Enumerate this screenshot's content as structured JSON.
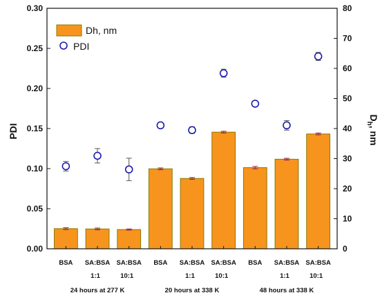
{
  "chart_data": {
    "type": "bar",
    "categories": [
      "BSA",
      "SA:BSA 1:1",
      "SA:BSA 10:1",
      "BSA",
      "SA:BSA 1:1",
      "SA:BSA 10:1",
      "BSA",
      "SA:BSA 1:1",
      "SA:BSA 10:1"
    ],
    "category_labels": [
      {
        "line1": "BSA",
        "line2": ""
      },
      {
        "line1": "SA:BSA",
        "line2": "1:1"
      },
      {
        "line1": "SA:BSA",
        "line2": "10:1"
      },
      {
        "line1": "BSA",
        "line2": ""
      },
      {
        "line1": "SA:BSA",
        "line2": "1:1"
      },
      {
        "line1": "SA:BSA",
        "line2": "10:1"
      },
      {
        "line1": "BSA",
        "line2": ""
      },
      {
        "line1": "SA:BSA",
        "line2": "1:1"
      },
      {
        "line1": "SA:BSA",
        "line2": "10:1"
      }
    ],
    "groups": [
      {
        "label": "24 hours at 277 K",
        "categories": [
          0,
          1,
          2
        ]
      },
      {
        "label": "20 hours at 338 K",
        "categories": [
          3,
          4,
          5
        ]
      },
      {
        "label": "48 hours at 338 K",
        "categories": [
          6,
          7,
          8
        ]
      }
    ],
    "series": [
      {
        "name": "Dh, nm",
        "kind": "bar",
        "axis": "right",
        "color": "#F7941D",
        "edge_color": "#8B7A00",
        "values": [
          6.7,
          6.6,
          6.4,
          26.6,
          23.4,
          38.8,
          27.0,
          29.8,
          38.2
        ],
        "errors": [
          0.3,
          0.3,
          0.2,
          0.3,
          0.3,
          0.3,
          0.4,
          0.3,
          0.3
        ]
      },
      {
        "name": "PDI",
        "kind": "scatter",
        "axis": "left",
        "color": "#1C1CB0",
        "values": [
          0.103,
          0.116,
          0.099,
          0.154,
          0.148,
          0.219,
          0.181,
          0.154,
          0.24
        ],
        "errors": [
          0.006,
          0.009,
          0.014,
          0.003,
          0.004,
          0.005,
          0.003,
          0.006,
          0.005
        ]
      }
    ],
    "ylabel": "PDI",
    "y2label_main": "D",
    "y2label_sub": "h",
    "y2label_tail": ", nm",
    "ylim": [
      0,
      0.3
    ],
    "y2lim": [
      0,
      80
    ],
    "yticks": [
      "0.00",
      "0.05",
      "0.10",
      "0.15",
      "0.20",
      "0.25",
      "0.30"
    ],
    "y2ticks": [
      "0",
      "10",
      "20",
      "30",
      "40",
      "50",
      "60",
      "70",
      "80"
    ],
    "legend": {
      "position": "top-left"
    },
    "grid": false
  }
}
